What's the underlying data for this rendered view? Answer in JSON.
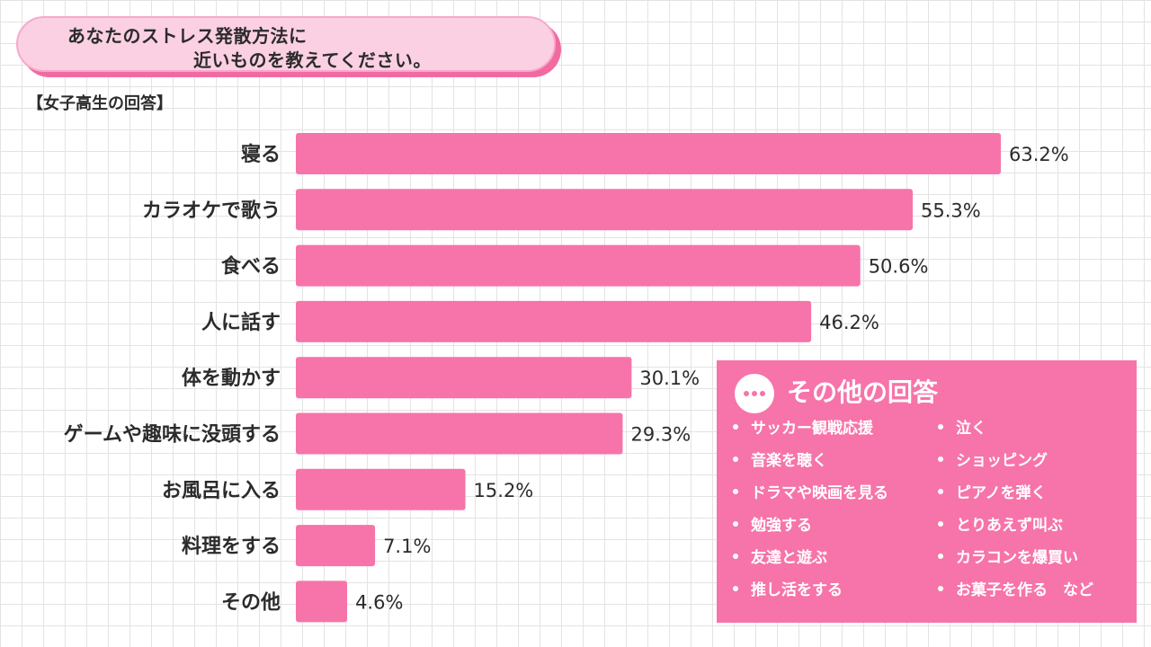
{
  "header": {
    "title_line1": "あなたのストレス発散方法に",
    "title_line2": "近いものを教えてください。",
    "subtitle": "【女子高生の回答】"
  },
  "chart_data": {
    "type": "bar",
    "orientation": "horizontal",
    "title": "あなたのストレス発散方法に近いものを教えてください。",
    "subtitle": "【女子高生の回答】",
    "categories": [
      "寝る",
      "カラオケで歌う",
      "食べる",
      "人に話す",
      "体を動かす",
      "ゲームや趣味に没頭する",
      "お風呂に入る",
      "料理をする",
      "その他"
    ],
    "values": [
      63.2,
      55.3,
      50.6,
      46.2,
      30.1,
      29.3,
      15.2,
      7.1,
      4.6
    ],
    "value_labels": [
      "63.2%",
      "55.3%",
      "50.6%",
      "46.2%",
      "30.1%",
      "29.3%",
      "15.2%",
      "7.1%",
      "4.6%"
    ],
    "unit": "%",
    "xlim": [
      0,
      63.2
    ],
    "grid": false,
    "bar_color": "#f674a9"
  },
  "other_answers": {
    "title": "その他の回答",
    "icon": "ellipsis-icon",
    "column1": [
      "サッカー観戦応援",
      "音楽を聴く",
      "ドラマや映画を見る",
      "勉強する",
      "友達と遊ぶ",
      "推し活をする"
    ],
    "column2": [
      "泣く",
      "ショッピング",
      "ピアノを弾く",
      "とりあえず叫ぶ",
      "カラコンを爆買い",
      "お菓子を作る　など"
    ]
  },
  "colors": {
    "accent": "#f674a9",
    "title_bg": "#fbd0e2",
    "title_shadow": "#f26aa2"
  }
}
